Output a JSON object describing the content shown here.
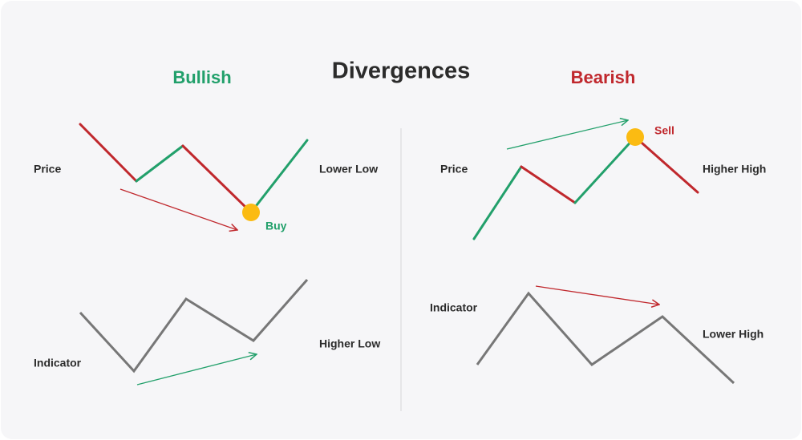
{
  "title": "Divergences",
  "bullish": {
    "heading": "Bullish",
    "price_label": "Price",
    "price_note": "Lower Low",
    "signal": "Buy",
    "indicator_label": "Indicator",
    "indicator_note": "Higher Low"
  },
  "bearish": {
    "heading": "Bearish",
    "price_label": "Price",
    "price_note": "Higher High",
    "signal": "Sell",
    "indicator_label": "Indicator",
    "indicator_note": "Lower High"
  }
}
